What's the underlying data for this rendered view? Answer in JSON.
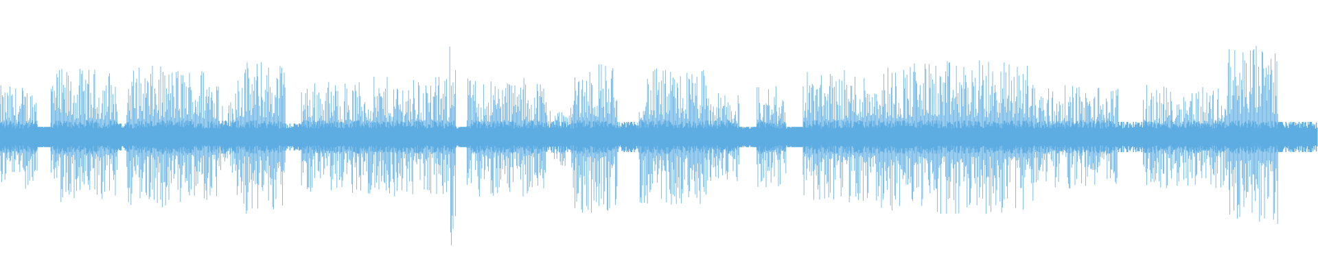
{
  "waveform": {
    "color": "#5dade2"
  }
}
